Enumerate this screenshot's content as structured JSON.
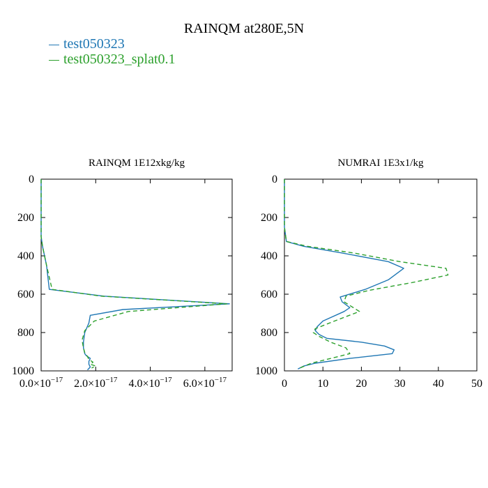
{
  "figure": {
    "title": "RAINQM at280E,5N"
  },
  "legend": [
    {
      "name": "test050323",
      "color": "#1f77b4",
      "dash": "solid"
    },
    {
      "name": "test050323_splat0.1",
      "color": "#2ca02c",
      "dash": "dashed"
    }
  ],
  "chart_data": [
    {
      "type": "line",
      "title": "RAINQM  1E12xkg/kg",
      "xlabel": "",
      "ylabel": "",
      "xlim": [
        0,
        7e-17
      ],
      "ylim": [
        1000,
        0
      ],
      "x_ticks": [
        0,
        2e-17,
        4e-17,
        6e-17
      ],
      "x_tick_labels": [
        {
          "mant": "0.0×10",
          "exp": "−17"
        },
        {
          "mant": "2.0×10",
          "exp": "−17"
        },
        {
          "mant": "4.0×10",
          "exp": "−17"
        },
        {
          "mant": "6.0×10",
          "exp": "−17"
        }
      ],
      "y_ticks": [
        0,
        200,
        400,
        600,
        800,
        1000
      ],
      "y_tick_labels": [
        "0",
        "200",
        "400",
        "600",
        "800",
        "1000"
      ],
      "grid": false,
      "series": [
        {
          "name": "test050323",
          "x": [
            0,
            0,
            0,
            0,
            5e-19,
            2e-18,
            3e-18,
            2.3e-17,
            6.9e-17,
            3e-17,
            1.8e-17,
            1.75e-17,
            1.6e-17,
            1.55e-17,
            1.55e-17,
            1.6e-17,
            1.65e-17,
            1.8e-17,
            1.75e-17,
            1.75e-17,
            1.8e-17,
            1.7e-17
          ],
          "y": [
            0,
            100,
            200,
            300,
            350,
            450,
            575,
            610,
            650,
            680,
            710,
            750,
            800,
            850,
            880,
            910,
            920,
            935,
            950,
            965,
            980,
            995
          ]
        },
        {
          "name": "test050323_splat0.1",
          "x": [
            0,
            0,
            0,
            0,
            5e-19,
            2e-18,
            4e-18,
            2.2e-17,
            6.8e-17,
            3.2e-17,
            1.95e-17,
            1.6e-17,
            1.5e-17,
            1.55e-17,
            1.6e-17,
            1.7e-17,
            1.75e-17,
            1.9e-17,
            1.8e-17,
            2e-17,
            1.85e-17
          ],
          "y": [
            0,
            100,
            200,
            300,
            350,
            450,
            575,
            610,
            650,
            690,
            740,
            790,
            840,
            880,
            905,
            925,
            940,
            955,
            965,
            975,
            985
          ]
        }
      ]
    },
    {
      "type": "line",
      "title": "NUMRAI  1E3x1/kg",
      "xlabel": "",
      "ylabel": "",
      "xlim": [
        0,
        50
      ],
      "ylim": [
        1000,
        0
      ],
      "x_ticks": [
        0,
        10,
        20,
        30,
        40,
        50
      ],
      "x_tick_labels": [
        "0",
        "10",
        "20",
        "30",
        "40",
        "50"
      ],
      "y_ticks": [
        0,
        200,
        400,
        600,
        800,
        1000
      ],
      "y_tick_labels": [
        "0",
        "200",
        "400",
        "600",
        "800",
        "1000"
      ],
      "grid": false,
      "series": [
        {
          "name": "test050323",
          "x": [
            0,
            0,
            0,
            0.5,
            5,
            15,
            27,
            31,
            27,
            21,
            14.5,
            15,
            17,
            15.5,
            10,
            8.5,
            8,
            9,
            11,
            20,
            26,
            28.5,
            28,
            17,
            8,
            5,
            3.5
          ],
          "y": [
            0,
            100,
            250,
            325,
            350,
            385,
            430,
            465,
            525,
            575,
            615,
            640,
            670,
            690,
            740,
            770,
            790,
            810,
            830,
            850,
            870,
            890,
            910,
            935,
            960,
            975,
            990
          ]
        },
        {
          "name": "test050323_splat0.1",
          "x": [
            0,
            0,
            0,
            0.5,
            6,
            18,
            30,
            42,
            42.5,
            33,
            22,
            16,
            15.5,
            19.5,
            13,
            8,
            7.5,
            9,
            12,
            16,
            17,
            13,
            7,
            4
          ],
          "y": [
            0,
            100,
            250,
            325,
            350,
            385,
            430,
            465,
            500,
            540,
            580,
            610,
            640,
            690,
            740,
            780,
            800,
            820,
            850,
            880,
            910,
            930,
            960,
            985
          ]
        }
      ]
    }
  ]
}
